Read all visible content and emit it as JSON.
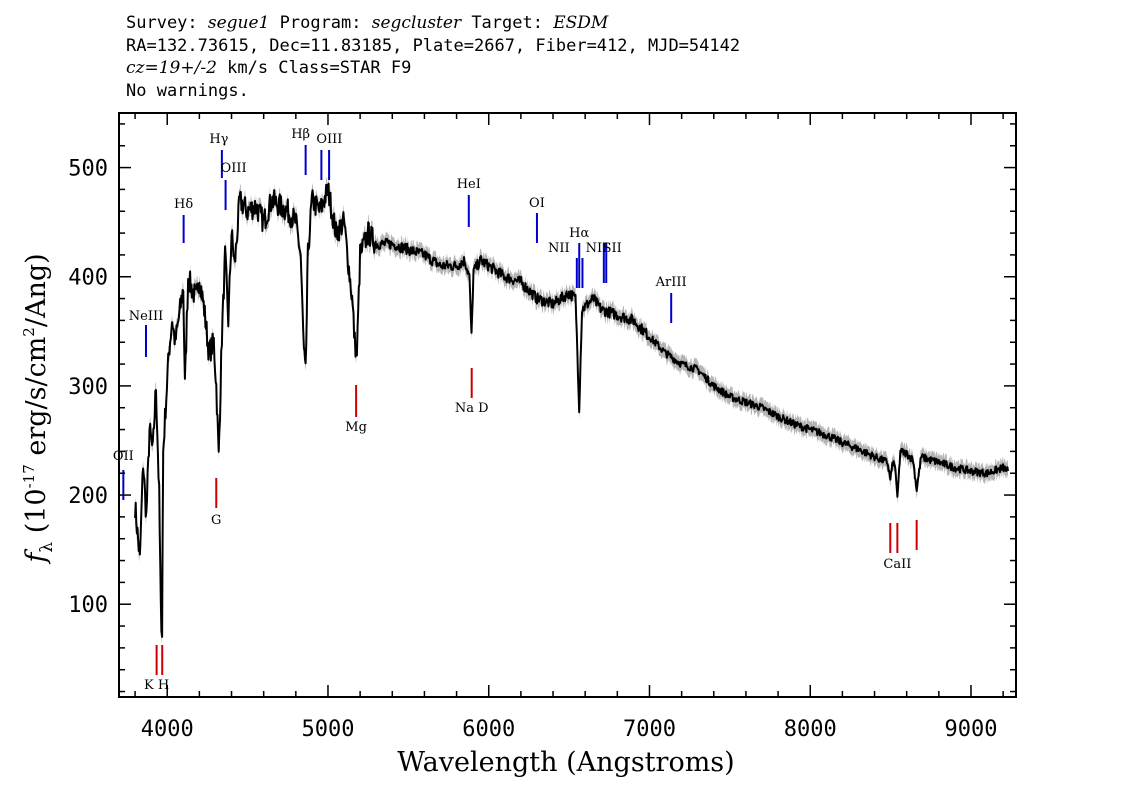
{
  "header": {
    "line1": {
      "survey_label": "Survey: ",
      "survey": "segue1",
      "program_label": " Program: ",
      "program": "segcluster",
      "target_label": " Target: ",
      "target": "ESDM"
    },
    "line2": "RA=132.73615, Dec=11.83185, Plate=2667, Fiber=412, MJD=54142",
    "line3": {
      "cz": "cz=19+/-2",
      "rest": " km/s Class=STAR F9"
    },
    "line4": "No warnings."
  },
  "chart_data": {
    "type": "line",
    "xlabel": "Wavelength (Angstroms)",
    "ylabel": "f_λ (10^-17 erg/s/cm^2/Ang)",
    "xlim": [
      3700,
      9280
    ],
    "ylim": [
      15,
      550
    ],
    "xticks": [
      4000,
      5000,
      6000,
      7000,
      8000,
      9000
    ],
    "yticks": [
      100,
      200,
      300,
      400,
      500
    ],
    "grid": false,
    "colors": {
      "flux": "#000000",
      "error_band": "#b4b4b4",
      "emission": "#0000cc",
      "absorption": "#cc0000"
    },
    "series": [
      {
        "kind": "flux",
        "x": [
          3800,
          3830,
          3850,
          3870,
          3890,
          3910,
          3930,
          3950,
          3960,
          3968,
          3975,
          3990,
          4010,
          4030,
          4050,
          4080,
          4100,
          4110,
          4130,
          4150,
          4180,
          4200,
          4230,
          4260,
          4290,
          4305,
          4320,
          4340,
          4360,
          4380,
          4400,
          4420,
          4450,
          4500,
          4550,
          4600,
          4650,
          4700,
          4750,
          4800,
          4830,
          4850,
          4861,
          4875,
          4900,
          4950,
          5000,
          5050,
          5100,
          5150,
          5167,
          5180,
          5200,
          5250,
          5300,
          5400,
          5500,
          5600,
          5700,
          5800,
          5850,
          5880,
          5893,
          5905,
          5950,
          6000,
          6100,
          6200,
          6300,
          6400,
          6500,
          6540,
          6563,
          6580,
          6650,
          6700,
          6800,
          6900,
          7000,
          7100,
          7200,
          7300,
          7400,
          7500,
          7600,
          7700,
          7800,
          7900,
          8000,
          8100,
          8200,
          8300,
          8400,
          8480,
          8498,
          8515,
          8530,
          8542,
          8560,
          8600,
          8640,
          8662,
          8690,
          8750,
          8800,
          8900,
          9000,
          9100,
          9200,
          9230
        ],
        "y": [
          190,
          140,
          230,
          180,
          260,
          240,
          300,
          200,
          95,
          75,
          240,
          280,
          330,
          360,
          340,
          370,
          390,
          300,
          400,
          390,
          380,
          400,
          370,
          330,
          340,
          300,
          235,
          345,
          420,
          360,
          440,
          410,
          470,
          460,
          465,
          450,
          470,
          465,
          460,
          450,
          420,
          330,
          310,
          420,
          470,
          460,
          480,
          440,
          450,
          380,
          340,
          330,
          420,
          440,
          430,
          430,
          425,
          420,
          410,
          410,
          415,
          400,
          345,
          405,
          415,
          410,
          400,
          395,
          380,
          375,
          385,
          380,
          280,
          370,
          380,
          370,
          365,
          360,
          345,
          330,
          320,
          315,
          300,
          290,
          285,
          280,
          272,
          265,
          260,
          255,
          248,
          242,
          235,
          230,
          215,
          230,
          225,
          195,
          240,
          238,
          232,
          205,
          235,
          232,
          230,
          225,
          222,
          220,
          225,
          222
        ],
        "err": 7
      }
    ],
    "line_markers": [
      {
        "label": "OII",
        "x": 3727,
        "type": "emission"
      },
      {
        "label": "NeIII",
        "x": 3868,
        "type": "emission"
      },
      {
        "label": "Hδ",
        "x": 4102,
        "type": "emission"
      },
      {
        "label": "Hγ",
        "x": 4340,
        "type": "emission"
      },
      {
        "label": "OIII",
        "x": 4363,
        "type": "emission"
      },
      {
        "label": "Hβ",
        "x": 4861,
        "type": "emission"
      },
      {
        "label": "OIII",
        "x": 4959,
        "type": "emission"
      },
      {
        "label": "OIII",
        "x": 5007,
        "type": "emission"
      },
      {
        "label": "HeI",
        "x": 5876,
        "type": "emission"
      },
      {
        "label": "OI",
        "x": 6300,
        "type": "emission"
      },
      {
        "label": "NII",
        "x": 6548,
        "type": "emission"
      },
      {
        "label": "Hα",
        "x": 6563,
        "type": "emission"
      },
      {
        "label": "NII",
        "x": 6583,
        "type": "emission"
      },
      {
        "label": "SII",
        "x": 6716,
        "type": "emission"
      },
      {
        "label": "SII",
        "x": 6731,
        "type": "emission"
      },
      {
        "label": "ArIII",
        "x": 7135,
        "type": "emission"
      },
      {
        "label": "K",
        "x": 3934,
        "type": "absorption"
      },
      {
        "label": "H",
        "x": 3969,
        "type": "absorption"
      },
      {
        "label": "G",
        "x": 4305,
        "type": "absorption"
      },
      {
        "label": "Mg",
        "x": 5175,
        "type": "absorption"
      },
      {
        "label": "Na D",
        "x": 5894,
        "type": "absorption"
      },
      {
        "label": "CaII",
        "x": 8498,
        "type": "absorption"
      },
      {
        "label": "CaII",
        "x": 8542,
        "type": "absorption"
      },
      {
        "label": "CaII",
        "x": 8662,
        "type": "absorption"
      }
    ]
  }
}
